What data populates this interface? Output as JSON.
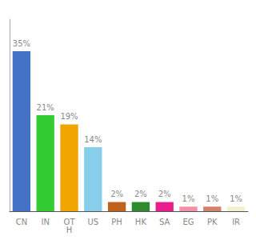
{
  "chart_data": {
    "type": "bar",
    "categories": [
      "CN",
      "IN",
      "OT\nH",
      "US",
      "PH",
      "HK",
      "SA",
      "EG",
      "PK",
      "IR"
    ],
    "values": [
      35,
      21,
      19,
      14,
      2,
      2,
      2,
      1,
      1,
      1
    ],
    "value_labels": [
      "35%",
      "21%",
      "19%",
      "14%",
      "2%",
      "2%",
      "2%",
      "1%",
      "1%",
      "1%"
    ],
    "colors": [
      "#4472c4",
      "#33cc33",
      "#f0a500",
      "#87ceeb",
      "#c0621c",
      "#2d8a2d",
      "#e91e8c",
      "#f48fa8",
      "#d4826a",
      "#f5f0d0"
    ],
    "ylim": [
      0,
      42
    ],
    "yticks": [],
    "grid": false,
    "data_labels": true,
    "tick_labels": "x"
  }
}
